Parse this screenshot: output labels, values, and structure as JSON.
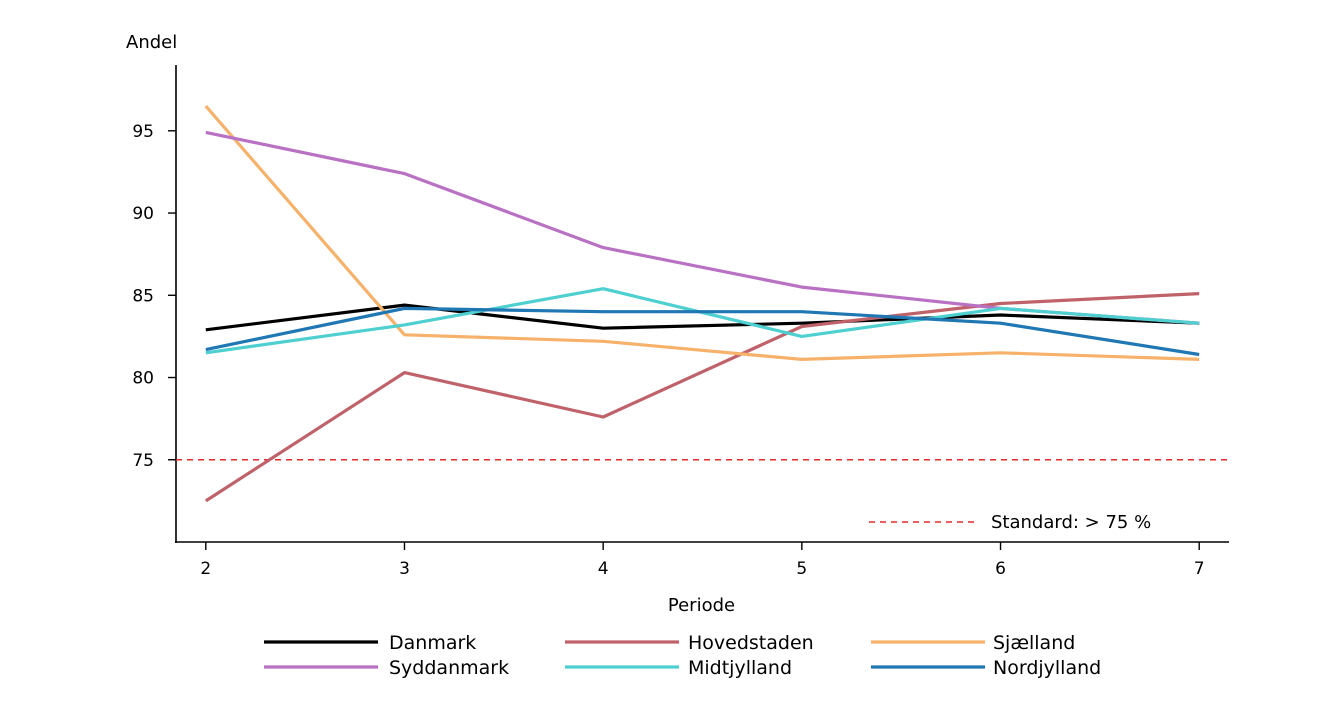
{
  "chart_data": {
    "type": "line",
    "ylabel": "Andel",
    "xlabel": "Periode",
    "x": [
      2,
      3,
      4,
      5,
      6,
      7
    ],
    "xlim": [
      1.85,
      7.15
    ],
    "ylim": [
      70.0,
      99.0
    ],
    "yticks": [
      75,
      80,
      85,
      90,
      95
    ],
    "grid": false,
    "legend_position": "bottom",
    "series": [
      {
        "name": "Danmark",
        "color": "#000000",
        "values": [
          82.9,
          84.4,
          83.0,
          83.3,
          83.8,
          83.3
        ]
      },
      {
        "name": "Hovedstaden",
        "color": "#c0626a",
        "values": [
          72.5,
          80.3,
          77.6,
          83.1,
          84.5,
          85.1
        ]
      },
      {
        "name": "Sjælland",
        "color": "#f6b26b",
        "values": [
          96.5,
          82.6,
          82.2,
          81.1,
          81.5,
          81.1
        ]
      },
      {
        "name": "Syddanmark",
        "color": "#b971c4",
        "values": [
          94.9,
          92.4,
          87.9,
          85.5,
          84.2,
          83.3
        ]
      },
      {
        "name": "Midtjylland",
        "color": "#4ecfd0",
        "values": [
          81.5,
          83.2,
          85.4,
          82.5,
          84.2,
          83.3
        ]
      },
      {
        "name": "Nordjylland",
        "color": "#1f77b4",
        "values": [
          81.7,
          84.2,
          84.0,
          84.0,
          83.3,
          81.4
        ]
      }
    ],
    "reference_line": {
      "value": 75,
      "color": "#e62a2a",
      "label": "Standard: > 75 %"
    }
  }
}
